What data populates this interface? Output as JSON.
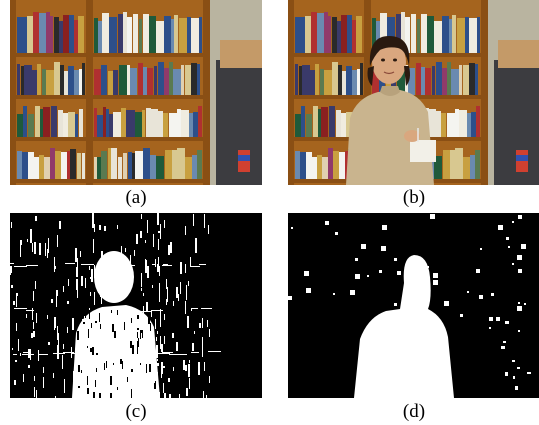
{
  "figure": {
    "panels": [
      {
        "caption": "(a)",
        "content": "bookshelf-background-frame"
      },
      {
        "caption": "(b)",
        "content": "bookshelf-with-person-frame"
      },
      {
        "caption": "(c)",
        "content": "binary-difference-mask"
      },
      {
        "caption": "(d)",
        "content": "cleaned-foreground-mask"
      }
    ]
  },
  "colors": {
    "shelf_wood": "#a5641e",
    "shelf_dark": "#3a2410",
    "wall": "#c8c0a8",
    "sweater": "#c9b48e",
    "skin": "#d9a77f",
    "hair": "#2a1a10",
    "mask_bg": "#000000",
    "mask_fg": "#ffffff"
  }
}
